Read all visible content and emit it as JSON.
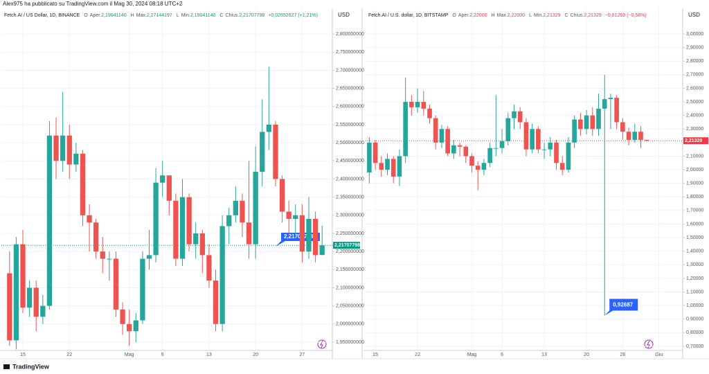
{
  "header": {
    "published": "Alex975 ha pubblicato su TradingView.com il Mag 30, 2024 08:18 UTC+2"
  },
  "footer": {
    "brand": "TradingView"
  },
  "chart_data": [
    {
      "type": "candlestick",
      "symbol": "Fetch.AI / US Dollar, 1D, BINANCE",
      "currency": "USD",
      "legend": [
        {
          "key": "O",
          "label": "Aper.",
          "value": "2,19041140"
        },
        {
          "key": "H",
          "label": "Max.",
          "value": "2,27144197"
        },
        {
          "key": "L",
          "label": "Min.",
          "value": "2,19041140"
        },
        {
          "key": "C",
          "label": "Chius.",
          "value": "2,21707798"
        }
      ],
      "change": "+0,02652627 (+1,21%)",
      "value_color": "#089981",
      "up_color": "#26a69a",
      "down_color": "#ef5350",
      "callout": "2,21707798",
      "grid": true,
      "categories": [
        null,
        null,
        "15",
        null,
        null,
        null,
        null,
        null,
        null,
        "22",
        null,
        null,
        null,
        null,
        null,
        null,
        null,
        null,
        "Mag",
        null,
        null,
        null,
        null,
        "6",
        null,
        null,
        null,
        null,
        null,
        null,
        "13",
        null,
        null,
        null,
        null,
        null,
        null,
        "20",
        null,
        null,
        null,
        null,
        null,
        null,
        "27",
        null,
        null,
        null
      ],
      "open": [
        2.14,
        1.955,
        2.22,
        2.045,
        2.1,
        2.02,
        2.05,
        2.52,
        2.45,
        2.52,
        2.44,
        2.47,
        2.3,
        2.28,
        2.2,
        2.18,
        2.18,
        2.04,
        2.0,
        1.98,
        2.01,
        2.18,
        2.19,
        2.39,
        2.41,
        2.34,
        2.18,
        2.35,
        2.22,
        2.25,
        2.19,
        2.12,
        2.0,
        2.27,
        2.3,
        2.34,
        2.28,
        2.22,
        2.42,
        2.53,
        2.55,
        2.4,
        2.31,
        2.29,
        2.3,
        2.2,
        2.29,
        2.1904114
      ],
      "high": [
        2.2,
        2.24,
        2.26,
        2.12,
        2.12,
        2.08,
        2.56,
        2.57,
        2.64,
        2.55,
        2.5,
        2.48,
        2.33,
        2.29,
        2.24,
        2.2,
        2.2,
        2.06,
        2.04,
        2.03,
        2.2,
        2.26,
        2.43,
        2.45,
        2.41,
        2.36,
        2.4,
        2.36,
        2.28,
        2.26,
        2.22,
        2.15,
        2.3,
        2.32,
        2.38,
        2.36,
        2.45,
        2.49,
        2.62,
        2.71,
        2.56,
        2.41,
        2.34,
        2.33,
        2.33,
        2.35,
        2.31,
        2.27144197
      ],
      "low": [
        1.94,
        1.93,
        2.03,
        2.02,
        1.98,
        2.0,
        2.04,
        2.4,
        2.42,
        2.4,
        2.42,
        2.27,
        2.2,
        2.18,
        2.14,
        2.12,
        2.02,
        1.97,
        1.94,
        1.95,
        2.0,
        2.15,
        2.17,
        2.35,
        2.3,
        2.16,
        2.16,
        2.2,
        2.18,
        2.14,
        2.1,
        1.98,
        1.98,
        2.22,
        2.28,
        2.24,
        2.18,
        2.18,
        2.38,
        2.48,
        2.38,
        2.28,
        2.24,
        2.24,
        2.17,
        2.18,
        2.17,
        2.1904114
      ],
      "close": [
        1.955,
        2.22,
        2.045,
        2.1,
        2.02,
        2.05,
        2.52,
        2.45,
        2.52,
        2.44,
        2.47,
        2.3,
        2.28,
        2.2,
        2.18,
        2.18,
        2.04,
        2.0,
        1.98,
        2.01,
        2.18,
        2.19,
        2.39,
        2.41,
        2.34,
        2.18,
        2.35,
        2.22,
        2.25,
        2.19,
        2.12,
        2.0,
        2.27,
        2.3,
        2.34,
        2.28,
        2.22,
        2.42,
        2.53,
        2.55,
        2.4,
        2.31,
        2.29,
        2.3,
        2.2,
        2.29,
        2.19,
        2.21707798
      ],
      "ylim": [
        1.927,
        2.871
      ],
      "yticks": [
        {
          "value": 1.95,
          "label": "1,950000000"
        },
        {
          "value": 2.0,
          "label": "2,000000000"
        },
        {
          "value": 2.05,
          "label": "2,050000000"
        },
        {
          "value": 2.1,
          "label": "2,100000000"
        },
        {
          "value": 2.15,
          "label": "2,150000000"
        },
        {
          "value": 2.2,
          "label": "2,200000000"
        },
        {
          "value": 2.25,
          "label": "2,250000000"
        },
        {
          "value": 2.3,
          "label": "2,300000000"
        },
        {
          "value": 2.35,
          "label": "2,350000000"
        },
        {
          "value": 2.4,
          "label": "2,400000000"
        },
        {
          "value": 2.45,
          "label": "2,450000000"
        },
        {
          "value": 2.5,
          "label": "2,500000000"
        },
        {
          "value": 2.55,
          "label": "2,550000000"
        },
        {
          "value": 2.6,
          "label": "2,600000000"
        },
        {
          "value": 2.65,
          "label": "2,650000000"
        },
        {
          "value": 2.7,
          "label": "2,700000000"
        },
        {
          "value": 2.75,
          "label": "2,750000000"
        },
        {
          "value": 2.8,
          "label": "2,800000000"
        }
      ]
    },
    {
      "type": "candlestick",
      "symbol": "Fetch.AI / U.S. dollar, 1D, BITSTAMP",
      "currency": "USD",
      "legend": [
        {
          "key": "O",
          "label": "Aper.",
          "value": "2,22000"
        },
        {
          "key": "H",
          "label": "Max.",
          "value": "2,22000"
        },
        {
          "key": "L",
          "label": "Min.",
          "value": "2,21329"
        },
        {
          "key": "C",
          "label": "Chius.",
          "value": "2,21329"
        }
      ],
      "change": "−0,01269 (−0,58%)",
      "value_color": "#f23645",
      "up_color": "#26a69a",
      "down_color": "#ef5350",
      "callout": "0,92687",
      "grid": true,
      "categories": [
        null,
        "15",
        null,
        null,
        null,
        null,
        null,
        null,
        "22",
        null,
        null,
        null,
        null,
        null,
        null,
        null,
        null,
        "Mag",
        null,
        null,
        null,
        null,
        "6",
        null,
        null,
        null,
        null,
        null,
        null,
        "13",
        null,
        null,
        null,
        null,
        null,
        null,
        "20",
        null,
        null,
        null,
        null,
        null,
        "26",
        null,
        null,
        null,
        null,
        null,
        "Giu"
      ],
      "open": [
        1.98,
        2.2,
        2.05,
        2.0,
        2.08,
        1.95,
        2.1,
        2.5,
        2.46,
        2.5,
        2.45,
        2.38,
        2.2,
        2.3,
        2.12,
        2.18,
        2.17,
        2.1,
        2.03,
        2.0,
        2.05,
        2.16,
        2.16,
        2.21,
        2.38,
        2.43,
        2.35,
        2.15,
        2.3,
        2.15,
        2.15,
        2.2,
        2.05,
        2.0,
        2.2,
        2.37,
        2.3,
        2.4,
        2.3,
        2.45,
        2.52,
        2.53,
        2.35,
        2.28,
        2.22,
        2.28,
        2.22,
        null,
        null
      ],
      "high": [
        2.24,
        2.22,
        2.1,
        2.12,
        2.1,
        2.15,
        2.68,
        2.55,
        2.6,
        2.58,
        2.48,
        2.4,
        2.33,
        2.32,
        2.22,
        2.2,
        2.18,
        2.12,
        2.06,
        2.08,
        2.2,
        2.55,
        2.3,
        2.42,
        2.48,
        2.46,
        2.38,
        2.34,
        2.32,
        2.2,
        2.24,
        2.22,
        2.1,
        2.24,
        2.4,
        2.42,
        2.44,
        2.46,
        2.56,
        2.7,
        2.56,
        2.55,
        2.38,
        2.31,
        2.34,
        2.32,
        2.22,
        null,
        null
      ],
      "low": [
        1.9,
        2.0,
        1.95,
        1.96,
        1.9,
        1.88,
        2.05,
        2.4,
        2.42,
        2.4,
        2.34,
        2.15,
        2.16,
        2.1,
        2.08,
        2.1,
        2.05,
        1.98,
        1.85,
        1.96,
        2.02,
        2.1,
        2.12,
        2.18,
        2.3,
        2.3,
        2.1,
        2.12,
        2.12,
        2.08,
        2.1,
        2.0,
        1.96,
        1.98,
        2.16,
        2.25,
        2.26,
        2.25,
        2.25,
        0.92687,
        2.3,
        2.3,
        2.22,
        2.18,
        2.2,
        2.16,
        2.21329,
        null,
        null
      ],
      "close": [
        2.2,
        2.05,
        2.0,
        2.08,
        1.95,
        2.1,
        2.5,
        2.46,
        2.5,
        2.45,
        2.38,
        2.2,
        2.3,
        2.12,
        2.18,
        2.17,
        2.1,
        2.03,
        2.0,
        2.05,
        2.16,
        2.16,
        2.21,
        2.38,
        2.43,
        2.35,
        2.15,
        2.3,
        2.15,
        2.15,
        2.2,
        2.05,
        2.0,
        2.2,
        2.37,
        2.3,
        2.4,
        2.3,
        2.45,
        2.52,
        2.53,
        2.35,
        2.28,
        2.22,
        2.28,
        2.22,
        2.21329,
        null,
        null
      ],
      "ylim": [
        0.669,
        3.189
      ],
      "yticks": [
        {
          "value": 0.7,
          "label": "0,70000"
        },
        {
          "value": 0.8,
          "label": "0,80000"
        },
        {
          "value": 0.9,
          "label": "0,90000"
        },
        {
          "value": 1.0,
          "label": "1,00000"
        },
        {
          "value": 1.1,
          "label": "1,10000"
        },
        {
          "value": 1.2,
          "label": "1,20000"
        },
        {
          "value": 1.3,
          "label": "1,30000"
        },
        {
          "value": 1.4,
          "label": "1,40000"
        },
        {
          "value": 1.5,
          "label": "1,50000"
        },
        {
          "value": 1.6,
          "label": "1,60000"
        },
        {
          "value": 1.7,
          "label": "1,70000"
        },
        {
          "value": 1.8,
          "label": "1,80000"
        },
        {
          "value": 1.9,
          "label": "1,90000"
        },
        {
          "value": 2.0,
          "label": "2,00000"
        },
        {
          "value": 2.1,
          "label": "2,10000"
        },
        {
          "value": 2.2,
          "label": "2,20000"
        },
        {
          "value": 2.3,
          "label": "2,30000"
        },
        {
          "value": 2.4,
          "label": "2,40000"
        },
        {
          "value": 2.5,
          "label": "2,50000"
        },
        {
          "value": 2.6,
          "label": "2,60000"
        },
        {
          "value": 2.7,
          "label": "2,70000"
        },
        {
          "value": 2.8,
          "label": "2,80000"
        },
        {
          "value": 2.9,
          "label": "2,90000"
        },
        {
          "value": 3.0,
          "label": "3,00000"
        }
      ]
    }
  ]
}
